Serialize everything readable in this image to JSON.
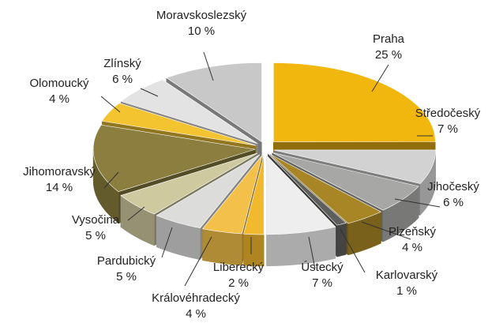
{
  "chart_data": {
    "type": "pie",
    "style": "3d-exploded",
    "slices": [
      {
        "label": "Praha",
        "value": 25,
        "value_label": "25 %",
        "color": "#f2b70f"
      },
      {
        "label": "Středočeský",
        "value": 7,
        "value_label": "7 %",
        "color": "#d2d2d2"
      },
      {
        "label": "Jihočeský",
        "value": 6,
        "value_label": "6 %",
        "color": "#a7a7a5"
      },
      {
        "label": "Plzeňský",
        "value": 4,
        "value_label": "4 %",
        "color": "#a88625"
      },
      {
        "label": "Karlovarský",
        "value": 1,
        "value_label": "1 %",
        "color": "#5e5e5c"
      },
      {
        "label": "Ústecký",
        "value": 7,
        "value_label": "7 %",
        "color": "#eeeeee"
      },
      {
        "label": "Liberecký",
        "value": 2,
        "value_label": "2 %",
        "color": "#f1b92e"
      },
      {
        "label": "Královéhradecký",
        "value": 4,
        "value_label": "4 %",
        "color": "#f3c149"
      },
      {
        "label": "Pardubický",
        "value": 5,
        "value_label": "5 %",
        "color": "#dcdcdb"
      },
      {
        "label": "Vysočina",
        "value": 5,
        "value_label": "5 %",
        "color": "#cfc9a0"
      },
      {
        "label": "Jihomoravský",
        "value": 14,
        "value_label": "14 %",
        "color": "#8b7e3e"
      },
      {
        "label": "Olomoucký",
        "value": 4,
        "value_label": "4 %",
        "color": "#f4c430"
      },
      {
        "label": "Zlínský",
        "value": 6,
        "value_label": "6 %",
        "color": "#e3e3e3"
      },
      {
        "label": "Moravskoslezský",
        "value": 10,
        "value_label": "10 %",
        "color": "#c8c8c8"
      }
    ]
  }
}
